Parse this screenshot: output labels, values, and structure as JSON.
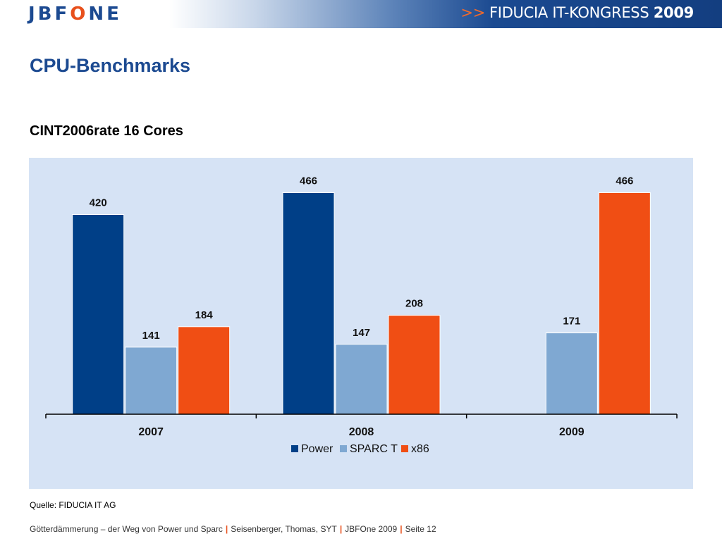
{
  "header": {
    "logo_prefix": "JBF",
    "logo_o": "O",
    "logo_suffix": "NE",
    "event_arrows": ">>",
    "event_name": "FIDUCIA IT-KONGRESS",
    "event_year": "2009"
  },
  "page": {
    "title": "CPU-Benchmarks",
    "source": "Quelle: FIDUCIA IT AG"
  },
  "footer": {
    "part1": "Götterdämmerung – der Weg von Power und Sparc",
    "part2": "Seisenberger, Thomas, SYT",
    "part3": "JBFOne 2009",
    "part4": "Seite 12",
    "separator": "|"
  },
  "colors": {
    "brand_blue": "#1c4a91",
    "accent_orange": "#e8501c",
    "chart_bg": "#d6e3f5"
  },
  "chart_data": {
    "type": "bar",
    "title": "CINT2006rate 16 Cores",
    "categories": [
      "2007",
      "2008",
      "2009"
    ],
    "series": [
      {
        "name": "Power",
        "color": "#003f87",
        "values": [
          420,
          466,
          null
        ]
      },
      {
        "name": "SPARC T",
        "color": "#7fa8d2",
        "values": [
          141,
          147,
          171
        ]
      },
      {
        "name": "x86",
        "color": "#f04e14",
        "values": [
          184,
          208,
          466
        ]
      }
    ],
    "ylim": [
      0,
      480
    ],
    "grid": false,
    "legend": "bottom",
    "xlabel": "",
    "ylabel": ""
  }
}
